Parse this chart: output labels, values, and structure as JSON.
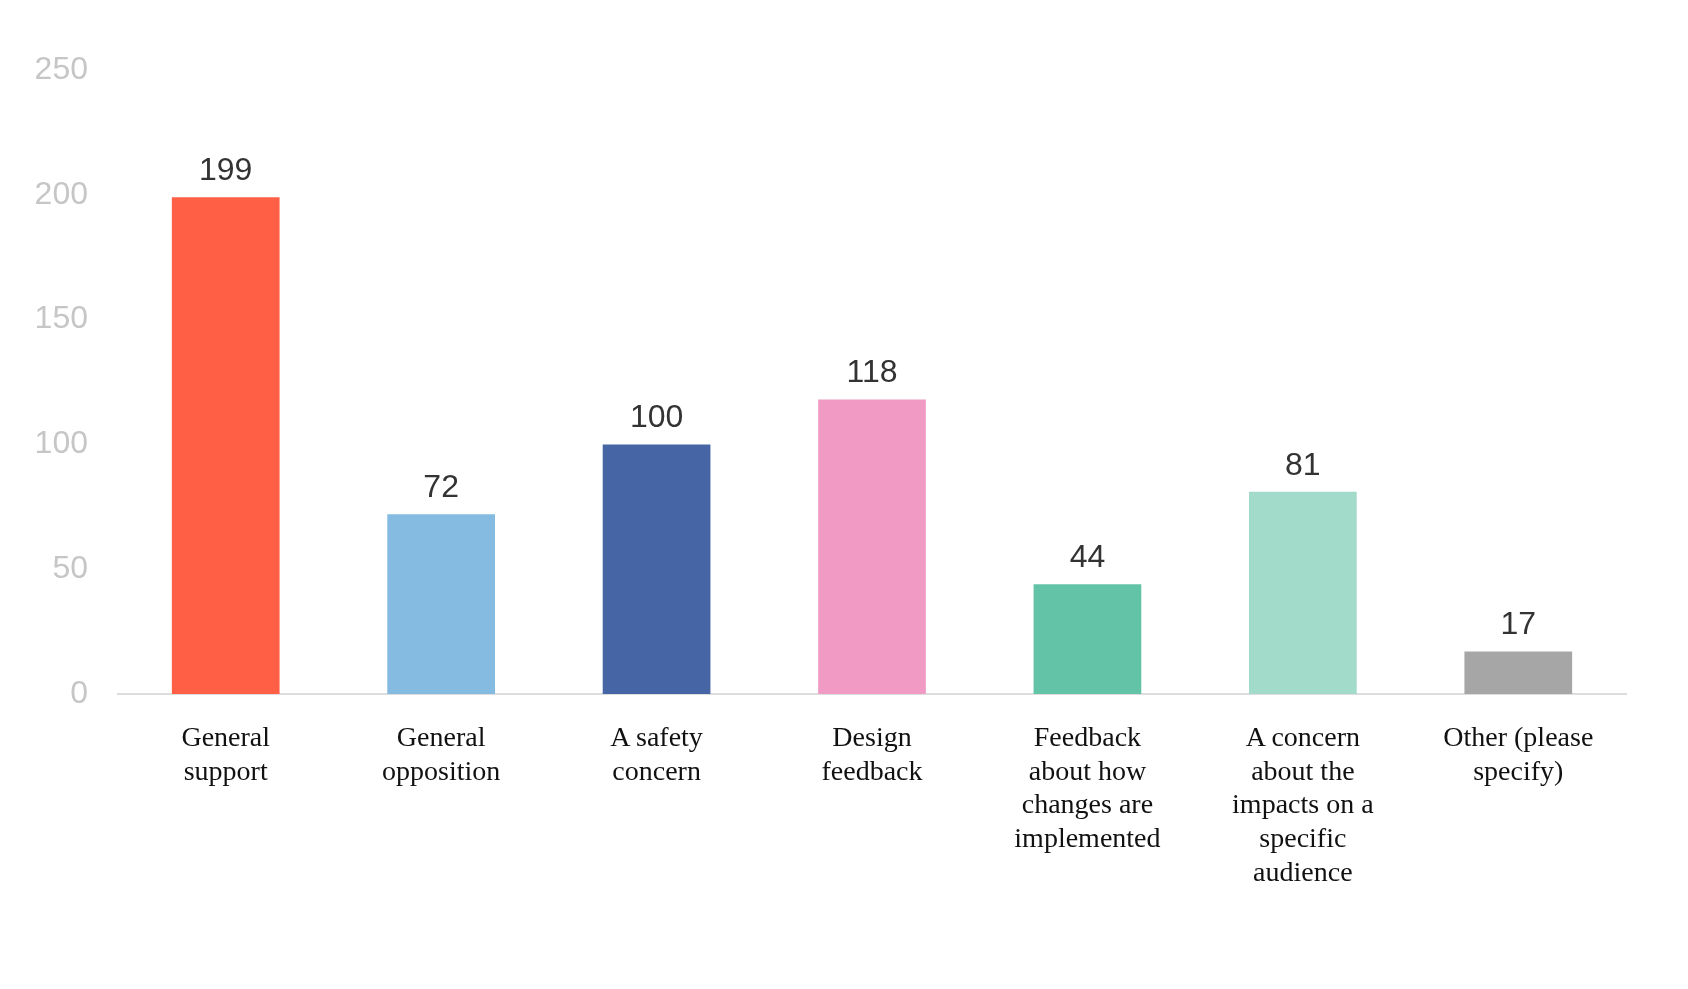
{
  "chart_data": {
    "type": "bar",
    "categories": [
      "General support",
      "General opposition",
      "A safety concern",
      "Design feedback",
      "Feedback about how changes are implemented",
      "A concern about the impacts on a specific audience",
      "Other (please specify)"
    ],
    "values": [
      199,
      72,
      100,
      118,
      44,
      81,
      17
    ],
    "colors": [
      "#ff5f45",
      "#85bbe0",
      "#4565a5",
      "#f09ac4",
      "#63c3a6",
      "#a3dbcb",
      "#a6a6a6"
    ],
    "ylim": [
      0,
      250
    ],
    "yticks": [
      0,
      50,
      100,
      150,
      200,
      250
    ],
    "grid": false,
    "legend": false,
    "data_labels": true
  }
}
